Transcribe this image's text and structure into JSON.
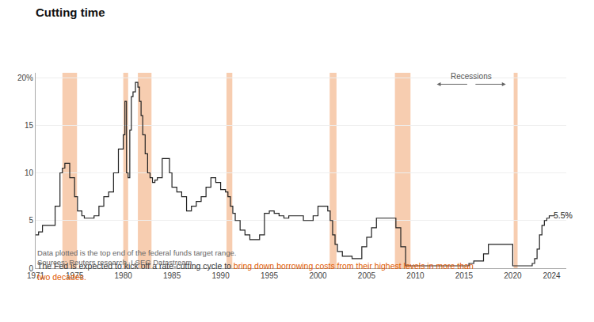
{
  "chart_data": {
    "type": "step",
    "title": "Cutting time",
    "subtitle": [
      {
        "text": "The Fed is expected to kick off a rate-cutting cycle to "
      },
      {
        "text": "bring down borrowing costs from their highest levels in more than\ntwo decades.",
        "color": "#e05a00"
      }
    ],
    "notes": [
      "Data plotted is the top end of the federal funds target range.",
      "Sources: Reuters research, LSEG Datastream"
    ],
    "bands": [
      [
        1973.75,
        1975.25
      ],
      [
        1980.0,
        1980.5
      ],
      [
        1981.5,
        1982.9
      ],
      [
        1990.6,
        1991.2
      ],
      [
        2001.2,
        2001.9
      ],
      [
        2007.9,
        2009.5
      ],
      [
        2020.1,
        2020.5
      ]
    ],
    "band_color": "#f7cdb0",
    "annotations": [
      {
        "text": "Recessions",
        "x_from": 2012.2,
        "x_to": 2019.3,
        "y": 19.3
      },
      {
        "text": "5.5%",
        "x": 2024.05,
        "y": 5.6
      }
    ],
    "x": [
      1971.0,
      1971.3,
      1971.7,
      1972.0,
      1972.5,
      1973.0,
      1973.5,
      1973.75,
      1974.0,
      1974.5,
      1975.0,
      1975.3,
      1975.75,
      1976.0,
      1976.5,
      1977.0,
      1977.5,
      1978.0,
      1978.5,
      1979.0,
      1979.5,
      1980.0,
      1980.17,
      1980.33,
      1980.5,
      1980.67,
      1980.83,
      1981.0,
      1981.25,
      1981.5,
      1981.67,
      1981.83,
      1982.0,
      1982.25,
      1982.5,
      1982.75,
      1983.0,
      1983.25,
      1983.5,
      1984.0,
      1984.5,
      1984.75,
      1985.0,
      1985.5,
      1986.0,
      1986.5,
      1987.0,
      1987.5,
      1988.0,
      1988.5,
      1989.0,
      1989.5,
      1990.0,
      1990.5,
      1990.75,
      1991.0,
      1991.25,
      1991.5,
      1992.0,
      1992.5,
      1993.0,
      1993.5,
      1994.0,
      1994.5,
      1995.0,
      1995.5,
      1996.0,
      1996.5,
      1997.0,
      1997.5,
      1998.0,
      1998.5,
      1999.0,
      1999.5,
      2000.0,
      2000.5,
      2001.0,
      2001.25,
      2001.5,
      2001.75,
      2002.0,
      2002.5,
      2003.0,
      2003.5,
      2004.0,
      2004.5,
      2005.0,
      2005.5,
      2006.0,
      2006.5,
      2007.0,
      2007.5,
      2008.0,
      2008.5,
      2009.0,
      2009.5,
      2010.0,
      2011.0,
      2012.0,
      2013.0,
      2014.0,
      2015.0,
      2015.5,
      2016.0,
      2016.5,
      2017.0,
      2017.5,
      2018.0,
      2018.5,
      2019.0,
      2019.5,
      2020.0,
      2020.17,
      2020.5,
      2021.0,
      2021.5,
      2022.0,
      2022.25,
      2022.5,
      2022.75,
      2023.0,
      2023.25,
      2023.5,
      2023.75,
      2024.0,
      2024.3
    ],
    "values": [
      3.5,
      3.8,
      4.5,
      4.5,
      4.5,
      6.5,
      10.0,
      10.5,
      11.0,
      9.5,
      7.5,
      6.0,
      5.5,
      5.25,
      5.25,
      5.5,
      6.5,
      7.5,
      8.0,
      10.0,
      12.5,
      14.0,
      17.5,
      10.0,
      9.5,
      14.5,
      18.0,
      18.5,
      19.5,
      19.0,
      17.5,
      16.0,
      14.0,
      12.0,
      10.0,
      9.5,
      9.0,
      9.25,
      9.5,
      11.5,
      11.5,
      10.0,
      8.5,
      8.0,
      7.5,
      6.0,
      6.5,
      7.0,
      7.5,
      8.5,
      9.5,
      9.0,
      8.25,
      8.0,
      7.5,
      6.5,
      5.75,
      5.0,
      4.0,
      3.5,
      3.0,
      3.0,
      3.5,
      5.75,
      6.0,
      5.75,
      5.5,
      5.25,
      5.5,
      5.5,
      5.5,
      5.0,
      5.0,
      5.5,
      6.5,
      6.5,
      6.0,
      5.0,
      3.5,
      2.5,
      1.75,
      1.25,
      1.25,
      1.0,
      1.0,
      2.25,
      3.25,
      4.25,
      5.25,
      5.25,
      5.25,
      5.25,
      4.25,
      2.25,
      0.25,
      0.25,
      0.25,
      0.25,
      0.25,
      0.25,
      0.25,
      0.25,
      0.5,
      0.75,
      0.75,
      1.5,
      2.5,
      2.5,
      2.5,
      2.5,
      2.5,
      0.25,
      0.25,
      0.25,
      0.25,
      0.25,
      0.5,
      1.0,
      2.0,
      3.5,
      4.5,
      5.0,
      5.25,
      5.5,
      5.5,
      5.5
    ],
    "color": "#222222",
    "xlim": [
      1971,
      2025.5
    ],
    "xticks": [
      1971,
      1975,
      1980,
      1985,
      1990,
      1995,
      2000,
      2005,
      2010,
      2015,
      2020,
      2024
    ],
    "ylim": [
      0,
      20.5
    ],
    "yticks": [
      0,
      5,
      10,
      15,
      {
        "value": 20,
        "label": "20%"
      }
    ],
    "grid": "y"
  }
}
